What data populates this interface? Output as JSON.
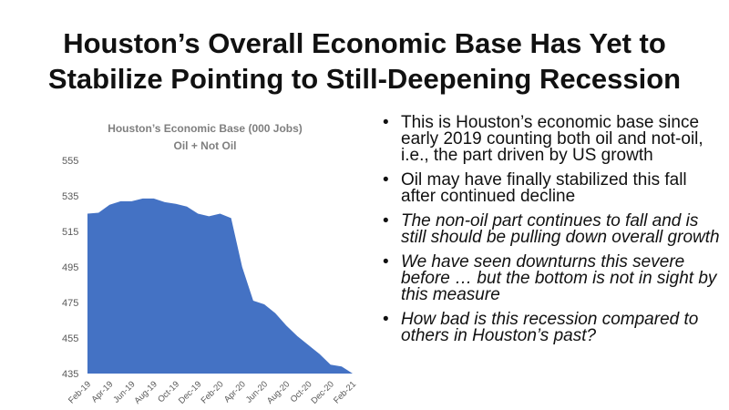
{
  "title": {
    "line1": "Houston’s Overall Economic Base Has Yet to",
    "line2": "Stabilize Pointing to Still-Deepening Recession"
  },
  "colors": {
    "area_fill": "#4472c4",
    "chart_title": "#7f7f7f",
    "axis_text": "#595959"
  },
  "chart_data": {
    "type": "area",
    "title": "Houston’s Economic Base (000 Jobs)",
    "subtitle": "Oil + Not Oil",
    "xlabel": "",
    "ylabel": "",
    "ylim": [
      435,
      555
    ],
    "yticks": [
      435,
      455,
      475,
      495,
      515,
      535,
      555
    ],
    "grid": false,
    "x": [
      "Feb-19",
      "Mar-19",
      "Apr-19",
      "May-19",
      "Jun-19",
      "Jul-19",
      "Aug-19",
      "Sep-19",
      "Oct-19",
      "Nov-19",
      "Dec-19",
      "Jan-20",
      "Feb-20",
      "Mar-20",
      "Apr-20",
      "May-20",
      "Jun-20",
      "Jul-20",
      "Aug-20",
      "Sep-20",
      "Oct-20",
      "Nov-20",
      "Dec-20",
      "Jan-21",
      "Feb-21"
    ],
    "xtick_labels": [
      "Feb-19",
      "Apr-19",
      "Jun-19",
      "Aug-19",
      "Oct-19",
      "Dec-19",
      "Feb-20",
      "Apr-20",
      "Jun-20",
      "Aug-20",
      "Oct-20",
      "Dec-20",
      "Feb-21"
    ],
    "series": [
      {
        "values": [
          525,
          525.5,
          530,
          532,
          532,
          533.5,
          533.5,
          531.5,
          530.5,
          529,
          525,
          523.5,
          525,
          522.5,
          495,
          476,
          474,
          469,
          462,
          456,
          451,
          446,
          440,
          439,
          435
        ]
      }
    ]
  },
  "bullets": [
    {
      "text": "This is Houston’s economic base since early 2019 counting both oil and not-oil, i.e., the part driven by US growth",
      "italic": false
    },
    {
      "text": "Oil may have finally stabilized this fall after continued decline",
      "italic": false
    },
    {
      "text": "The non-oil part continues to fall and is still should be pulling down overall growth",
      "italic": true
    },
    {
      "text": "We have seen downturns this severe before … but the bottom is not in sight by this measure",
      "italic": true
    },
    {
      "text": "How bad is this recession compared to others in Houston’s past?",
      "italic": true
    }
  ]
}
